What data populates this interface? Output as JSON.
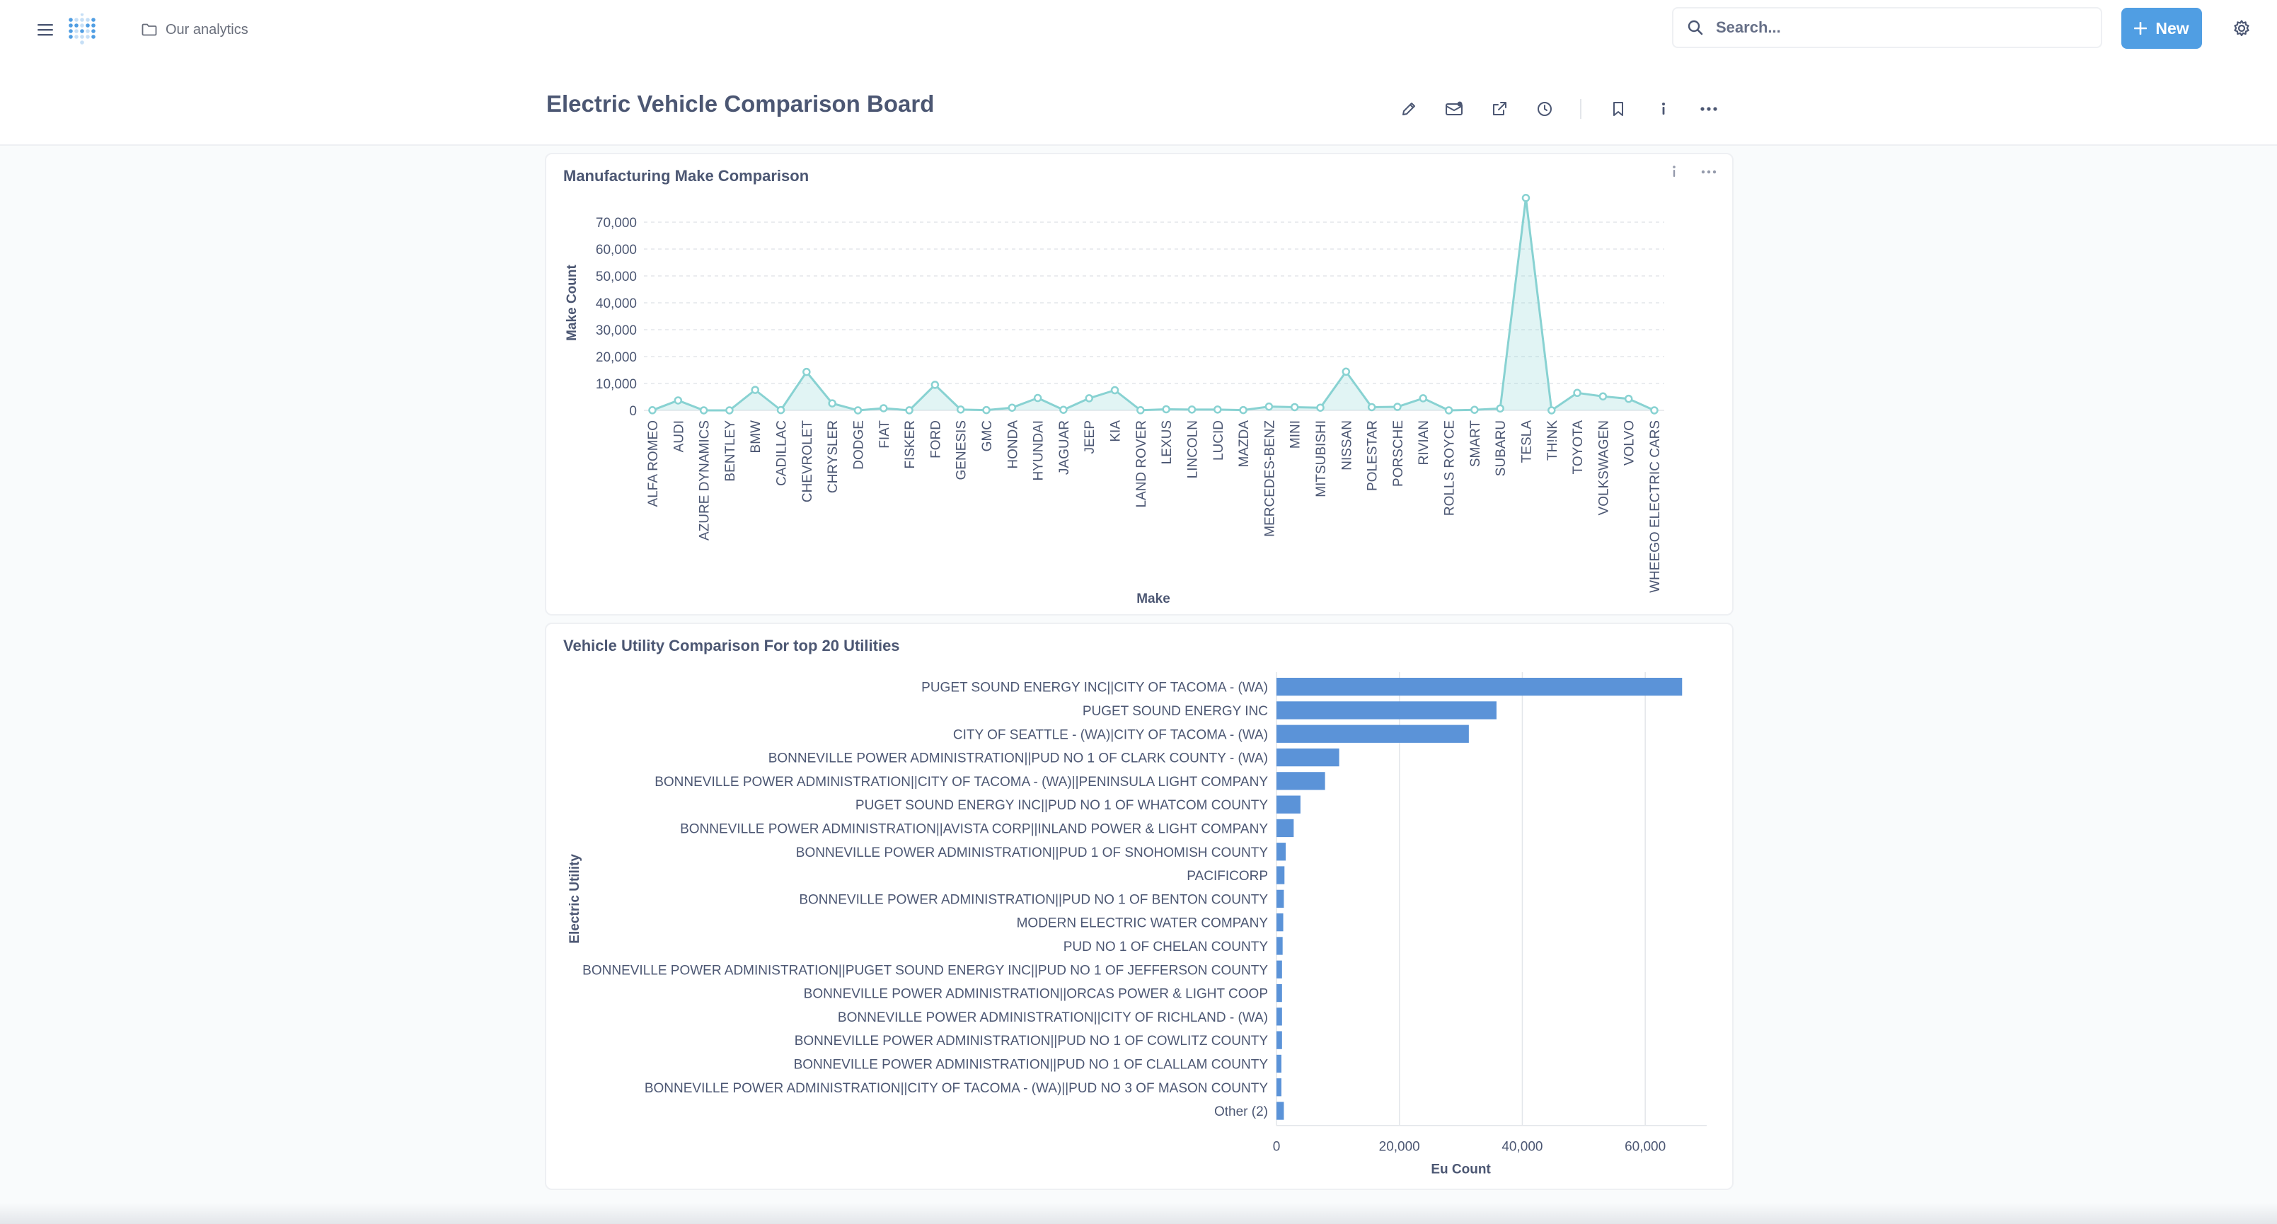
{
  "nav": {
    "breadcrumb": "Our analytics",
    "search_placeholder": "Search...",
    "new_label": "New"
  },
  "dashboard": {
    "title": "Electric Vehicle Comparison Board"
  },
  "colors": {
    "accent": "#509ee3",
    "area": "#88d2d2",
    "bar": "#5b93d8"
  },
  "chart_data": [
    {
      "type": "area",
      "title": "Manufacturing Make Comparison",
      "xlabel": "Make",
      "ylabel": "Make Count",
      "ylim": [
        0,
        80000
      ],
      "yticks": [
        0,
        10000,
        20000,
        30000,
        40000,
        50000,
        60000,
        70000
      ],
      "ytick_labels": [
        "0",
        "10,000",
        "20,000",
        "30,000",
        "40,000",
        "50,000",
        "60,000",
        "70,000"
      ],
      "grid": true,
      "categories": [
        "ALFA ROMEO",
        "AUDI",
        "AZURE DYNAMICS",
        "BENTLEY",
        "BMW",
        "CADILLAC",
        "CHEVROLET",
        "CHRYSLER",
        "DODGE",
        "FIAT",
        "FISKER",
        "FORD",
        "GENESIS",
        "GMC",
        "HONDA",
        "HYUNDAI",
        "JAGUAR",
        "JEEP",
        "KIA",
        "LAND ROVER",
        "LEXUS",
        "LINCOLN",
        "LUCID",
        "MAZDA",
        "MERCEDES-BENZ",
        "MINI",
        "MITSUBISHI",
        "NISSAN",
        "POLESTAR",
        "PORSCHE",
        "RIVIAN",
        "ROLLS ROYCE",
        "SMART",
        "SUBARU",
        "TESLA",
        "TH!NK",
        "TOYOTA",
        "VOLKSWAGEN",
        "VOLVO",
        "WHEEGO ELECTRIC CARS"
      ],
      "values": [
        50,
        3700,
        10,
        10,
        7600,
        100,
        14300,
        2600,
        10,
        800,
        20,
        9500,
        300,
        100,
        1000,
        4600,
        200,
        4500,
        7500,
        50,
        400,
        300,
        300,
        100,
        1400,
        1200,
        1000,
        14400,
        1200,
        1300,
        4500,
        10,
        200,
        700,
        79000,
        10,
        6500,
        5200,
        4300,
        10
      ]
    },
    {
      "type": "bar",
      "title": "Vehicle Utility Comparison For top 20 Utilities",
      "xlabel": "Eu Count",
      "ylabel": "Electric Utility",
      "xlim": [
        0,
        70000
      ],
      "xticks": [
        0,
        20000,
        40000,
        60000
      ],
      "xtick_labels": [
        "0",
        "20,000",
        "40,000",
        "60,000"
      ],
      "grid": true,
      "categories": [
        "PUGET SOUND ENERGY INC||CITY OF TACOMA - (WA)",
        "PUGET SOUND ENERGY INC",
        "CITY OF SEATTLE - (WA)|CITY OF TACOMA - (WA)",
        "BONNEVILLE POWER ADMINISTRATION||PUD NO 1 OF CLARK COUNTY - (WA)",
        "BONNEVILLE POWER ADMINISTRATION||CITY OF TACOMA - (WA)||PENINSULA LIGHT COMPANY",
        "PUGET SOUND ENERGY INC||PUD NO 1 OF WHATCOM COUNTY",
        "BONNEVILLE POWER ADMINISTRATION||AVISTA CORP||INLAND POWER & LIGHT COMPANY",
        "BONNEVILLE POWER ADMINISTRATION||PUD 1 OF SNOHOMISH COUNTY",
        "PACIFICORP",
        "BONNEVILLE POWER ADMINISTRATION||PUD NO 1 OF BENTON COUNTY",
        "MODERN ELECTRIC WATER COMPANY",
        "PUD NO 1 OF CHELAN COUNTY",
        "BONNEVILLE POWER ADMINISTRATION||PUGET SOUND ENERGY INC||PUD NO 1 OF JEFFERSON COUNTY",
        "BONNEVILLE POWER ADMINISTRATION||ORCAS POWER & LIGHT COOP",
        "BONNEVILLE POWER ADMINISTRATION||CITY OF RICHLAND - (WA)",
        "BONNEVILLE POWER ADMINISTRATION||PUD NO 1 OF COWLITZ COUNTY",
        "BONNEVILLE POWER ADMINISTRATION||PUD NO 1 OF CLALLAM COUNTY",
        "BONNEVILLE POWER ADMINISTRATION||CITY OF TACOMA - (WA)||PUD NO 3 OF MASON COUNTY",
        "Other (2)"
      ],
      "values": [
        66000,
        35800,
        31300,
        10200,
        7900,
        3900,
        2800,
        1500,
        1300,
        1200,
        1100,
        1000,
        900,
        900,
        900,
        900,
        800,
        800,
        1200
      ]
    }
  ]
}
